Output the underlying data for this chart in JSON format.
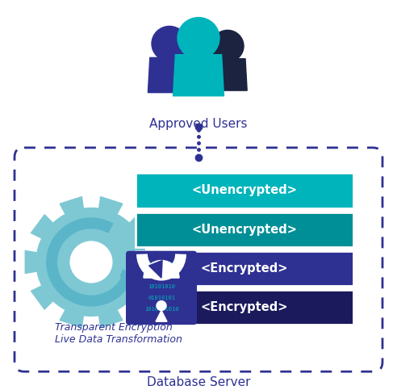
{
  "bg_color": "#ffffff",
  "approved_users_text": "Approved Users",
  "db_server_text": "Database Server",
  "encryption_label": "Transparent Encryption\nLive Data Transformation",
  "bars": [
    {
      "label": "<Unencrypted>",
      "color": "#00b4bc"
    },
    {
      "label": "<Unencrypted>",
      "color": "#008f96"
    },
    {
      "label": "<Encrypted>",
      "color": "#2e3192"
    },
    {
      "label": "<Encrypted>",
      "color": "#1a1a5c"
    }
  ],
  "user_colors": [
    "#2e3192",
    "#00b4bc",
    "#1c2341"
  ],
  "gear_color": "#7ec8d4",
  "lock_body_color": "#2e3192",
  "lock_binary_color": "#00b4bc",
  "dot_color": "#2e3192",
  "text_color": "#2e3192",
  "bar_text_color": "#ffffff",
  "box_edge_color": "#2e3192"
}
